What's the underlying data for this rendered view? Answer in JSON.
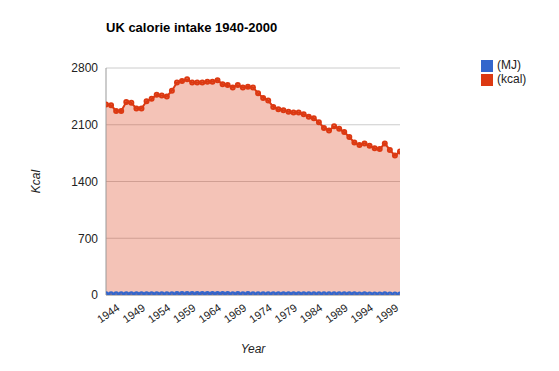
{
  "chart_data": {
    "type": "area",
    "title": "UK calorie intake 1940-2000",
    "x_label": "Year",
    "y_label": "Kcal",
    "x": [
      1942,
      1943,
      1944,
      1945,
      1946,
      1947,
      1948,
      1949,
      1950,
      1951,
      1952,
      1953,
      1954,
      1955,
      1956,
      1957,
      1958,
      1959,
      1960,
      1961,
      1962,
      1963,
      1964,
      1965,
      1966,
      1967,
      1968,
      1969,
      1970,
      1971,
      1972,
      1973,
      1974,
      1975,
      1976,
      1977,
      1978,
      1979,
      1980,
      1981,
      1982,
      1983,
      1984,
      1985,
      1986,
      1987,
      1988,
      1989,
      1990,
      1991,
      1992,
      1993,
      1994,
      1995,
      1996,
      1997,
      1998,
      1999,
      2000
    ],
    "series": [
      {
        "name": "(MJ)",
        "color": "#3366cc",
        "marker": "circle",
        "values": [
          9.8,
          9.8,
          9.5,
          9.5,
          10.0,
          9.9,
          9.6,
          9.6,
          10.0,
          10.1,
          10.3,
          10.3,
          10.3,
          10.5,
          11.0,
          11.0,
          11.1,
          11.0,
          11.0,
          11.0,
          11.0,
          11.0,
          11.1,
          10.9,
          10.8,
          10.7,
          10.8,
          10.7,
          10.8,
          10.7,
          10.4,
          10.2,
          10.0,
          9.7,
          9.6,
          9.5,
          9.5,
          9.4,
          9.4,
          9.3,
          9.2,
          9.1,
          8.9,
          8.6,
          8.5,
          8.7,
          8.6,
          8.4,
          8.2,
          7.9,
          7.7,
          7.8,
          7.7,
          7.6,
          7.5,
          7.8,
          7.5,
          7.2,
          7.4
        ]
      },
      {
        "name": "(kcal)",
        "color": "#dc3912",
        "marker": "circle",
        "values": [
          2350,
          2340,
          2270,
          2270,
          2380,
          2370,
          2300,
          2300,
          2390,
          2420,
          2470,
          2460,
          2450,
          2520,
          2620,
          2640,
          2660,
          2620,
          2620,
          2620,
          2630,
          2630,
          2650,
          2600,
          2590,
          2560,
          2590,
          2560,
          2570,
          2560,
          2490,
          2430,
          2400,
          2320,
          2290,
          2280,
          2260,
          2250,
          2250,
          2230,
          2200,
          2180,
          2130,
          2060,
          2030,
          2080,
          2050,
          2010,
          1950,
          1880,
          1850,
          1870,
          1840,
          1810,
          1800,
          1870,
          1790,
          1720,
          1770
        ]
      }
    ],
    "xlim": [
      1942,
      2000
    ],
    "xticks": [
      1944,
      1949,
      1954,
      1959,
      1964,
      1969,
      1974,
      1979,
      1984,
      1989,
      1994,
      1999
    ],
    "ylim": [
      0,
      2800
    ],
    "yticks": [
      0,
      700,
      1400,
      2100,
      2800
    ],
    "grid": true,
    "legend": "right"
  }
}
